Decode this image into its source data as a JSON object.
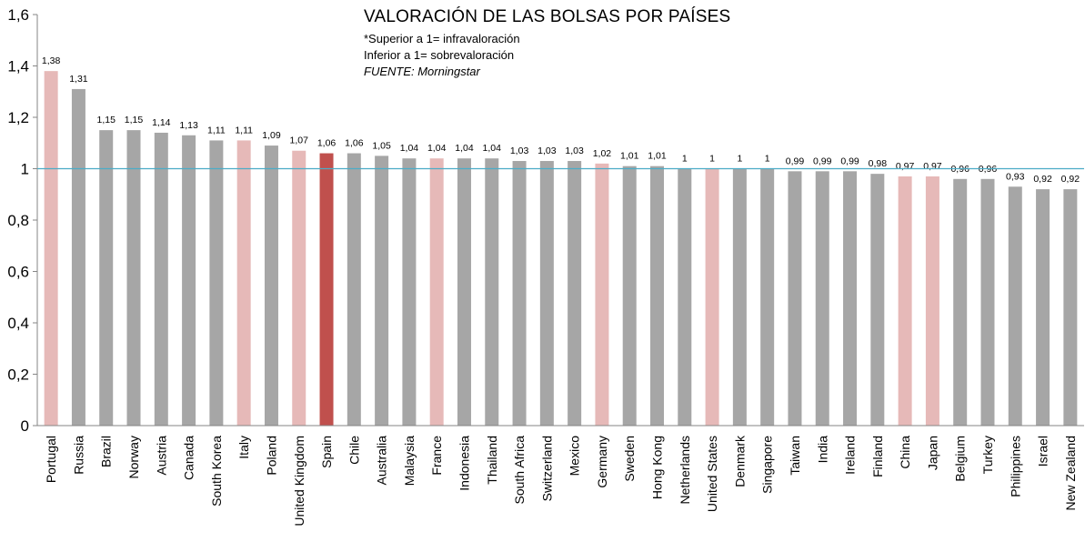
{
  "chart_data": {
    "type": "bar",
    "title": "VALORACIÓN DE LAS BOLSAS POR PAÍSES",
    "notes": [
      "*Superior a 1= infravaloración",
      "Inferior a 1= sobrevaloración"
    ],
    "source": "FUENTE: Morningstar",
    "xlabel": "",
    "ylabel": "",
    "ylim": [
      0,
      1.6
    ],
    "yticks": [
      0,
      0.2,
      0.4,
      0.6,
      0.8,
      1,
      1.2,
      1.4,
      1.6
    ],
    "ytick_labels": [
      "0",
      "0,2",
      "0,4",
      "0,6",
      "0,8",
      "1",
      "1,2",
      "1,4",
      "1,6"
    ],
    "reference_line": 1,
    "categories": [
      "Portugal",
      "Russia",
      "Brazil",
      "Norway",
      "Austria",
      "Canada",
      "South Korea",
      "Italy",
      "Poland",
      "United Kingdom",
      "Spain",
      "Chile",
      "Australia",
      "Malaysia",
      "France",
      "Indonesia",
      "Thailand",
      "South Africa",
      "Switzerland",
      "Mexico",
      "Germany",
      "Sweden",
      "Hong Kong",
      "Netherlands",
      "United States",
      "Denmark",
      "Singapore",
      "Taiwan",
      "India",
      "Ireland",
      "Finland",
      "China",
      "Japan",
      "Belgium",
      "Turkey",
      "Philippines",
      "Israel",
      "New Zealand"
    ],
    "values": [
      1.38,
      1.31,
      1.15,
      1.15,
      1.14,
      1.13,
      1.11,
      1.11,
      1.09,
      1.07,
      1.06,
      1.06,
      1.05,
      1.04,
      1.04,
      1.04,
      1.04,
      1.03,
      1.03,
      1.03,
      1.02,
      1.01,
      1.01,
      1,
      1,
      1,
      1,
      0.99,
      0.99,
      0.99,
      0.98,
      0.97,
      0.97,
      0.96,
      0.96,
      0.93,
      0.92,
      0.92
    ],
    "value_labels": [
      "1,38",
      "1,31",
      "1,15",
      "1,15",
      "1,14",
      "1,13",
      "1,11",
      "1,11",
      "1,09",
      "1,07",
      "1,06",
      "1,06",
      "1,05",
      "1,04",
      "1,04",
      "1,04",
      "1,04",
      "1,03",
      "1,03",
      "1,03",
      "1,02",
      "1,01",
      "1,01",
      "1",
      "1",
      "1",
      "1",
      "0,99",
      "0,99",
      "0,99",
      "0,98",
      "0,97",
      "0,97",
      "0,96",
      "0,96",
      "0,93",
      "0,92",
      "0,92"
    ],
    "bar_colors": [
      "#e6b9b8",
      "#a6a6a6",
      "#a6a6a6",
      "#a6a6a6",
      "#a6a6a6",
      "#a6a6a6",
      "#a6a6a6",
      "#e6b9b8",
      "#a6a6a6",
      "#e6b9b8",
      "#c0504d",
      "#a6a6a6",
      "#a6a6a6",
      "#a6a6a6",
      "#e6b9b8",
      "#a6a6a6",
      "#a6a6a6",
      "#a6a6a6",
      "#a6a6a6",
      "#a6a6a6",
      "#e6b9b8",
      "#a6a6a6",
      "#a6a6a6",
      "#a6a6a6",
      "#e6b9b8",
      "#a6a6a6",
      "#a6a6a6",
      "#a6a6a6",
      "#a6a6a6",
      "#a6a6a6",
      "#a6a6a6",
      "#e6b9b8",
      "#e6b9b8",
      "#a6a6a6",
      "#a6a6a6",
      "#a6a6a6",
      "#a6a6a6",
      "#a6a6a6"
    ],
    "reference_line_color": "#4bacc6",
    "axis_color": "#868686"
  }
}
